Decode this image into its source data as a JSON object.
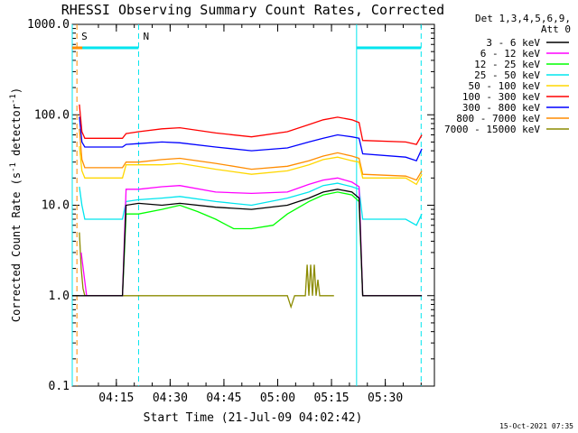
{
  "chart_data": {
    "type": "line",
    "title": "RHESSI Observing Summary Count Rates, Corrected",
    "xlabel": "Start Time (21-Jul-09 04:02:42)",
    "ylabel": "Corrected Count Rate (s",
    "ylabel_sup1": "-1",
    "ylabel_mid": " detector",
    "ylabel_sup2": "-1",
    "ylabel_end": ")",
    "y_scale": "log",
    "ylim": [
      0.1,
      1000
    ],
    "xlim_min": [
      0,
      101
    ],
    "x_ticks": [
      {
        "label": "04:15",
        "min": 12.3
      },
      {
        "label": "04:30",
        "min": 27.3
      },
      {
        "label": "04:45",
        "min": 42.3
      },
      {
        "label": "05:00",
        "min": 57.3
      },
      {
        "label": "05:15",
        "min": 72.3
      },
      {
        "label": "05:30",
        "min": 87.3
      }
    ],
    "y_ticks": [
      {
        "label": "1000.0",
        "v": 1000
      },
      {
        "label": "100.0",
        "v": 100
      },
      {
        "label": "10.0",
        "v": 10
      },
      {
        "label": "1.0",
        "v": 1
      },
      {
        "label": "0.1",
        "v": 0.1
      }
    ],
    "legend_title": [
      "Det 1,3,4,5,6,9,",
      "Att 0"
    ],
    "legend_placement": "right",
    "timestamp": "15-Oct-2021 07:35",
    "flags": [
      {
        "label": "S",
        "min": 1.3,
        "color": "#ff8c00"
      },
      {
        "label": "N",
        "min": 18.5,
        "color": "#00e5ee"
      }
    ],
    "saa_bars": [
      [
        0,
        18.5
      ],
      [
        79.3,
        97.3
      ]
    ],
    "saa_level": 550,
    "night_lines": [
      18.5,
      97.3
    ],
    "day_lines": [
      0,
      79.3
    ],
    "series": [
      {
        "name": "3 - 6 keV",
        "color": "#000000",
        "x": [
          0,
          4,
          14,
          15,
          18.5,
          25,
          30,
          40,
          50,
          60,
          66,
          70,
          74,
          78,
          80,
          81,
          93,
          96,
          97.5
        ],
        "y": [
          1,
          1,
          1,
          10,
          10.5,
          10,
          10.5,
          9.5,
          9,
          10,
          12,
          14,
          15,
          14,
          12,
          1,
          1,
          1,
          1
        ]
      },
      {
        "name": "6 - 12 keV",
        "color": "#ff00ff",
        "x": [
          2.5,
          4,
          14,
          15,
          18.5,
          25,
          30,
          40,
          50,
          60,
          66,
          70,
          74,
          78,
          80,
          81,
          93,
          96,
          97.5
        ],
        "y": [
          3,
          1,
          1,
          15,
          15,
          16,
          16.5,
          14,
          13.5,
          14,
          17,
          19,
          20,
          18,
          16,
          1,
          1,
          1,
          1
        ]
      },
      {
        "name": "12 - 25 keV",
        "color": "#00ff00",
        "x": [
          14,
          15,
          18.5,
          25,
          30,
          35,
          40,
          45,
          50,
          56,
          60,
          66,
          70,
          74,
          78,
          80,
          81
        ],
        "y": [
          1,
          8,
          8,
          9,
          10,
          8.5,
          7,
          5.5,
          5.5,
          6,
          8,
          11,
          13,
          14,
          13,
          11,
          1
        ]
      },
      {
        "name": "25 - 50 keV",
        "color": "#00e5ee",
        "x": [
          2,
          2.7,
          3.5,
          14,
          15,
          18.5,
          25,
          30,
          40,
          50,
          60,
          66,
          70,
          74,
          78,
          80,
          81,
          93,
          96,
          97.5
        ],
        "y": [
          16,
          10,
          7,
          7,
          11,
          11.5,
          12,
          12.5,
          11,
          10,
          12,
          14,
          16.5,
          17.5,
          16,
          15,
          7,
          7,
          6,
          8
        ]
      },
      {
        "name": "50 - 100 keV",
        "color": "#ffd700",
        "x": [
          2,
          2.7,
          3.5,
          14,
          15,
          18.5,
          25,
          30,
          40,
          50,
          60,
          66,
          70,
          74,
          78,
          80,
          81,
          93,
          96,
          97.5
        ],
        "y": [
          45,
          24,
          20,
          20,
          28,
          28,
          28,
          29,
          25,
          22,
          24,
          28,
          32,
          34,
          31,
          30,
          20,
          20,
          17,
          22
        ]
      },
      {
        "name": "100 - 300 keV",
        "color": "#ff0000",
        "x": [
          2,
          2.7,
          3.5,
          14,
          15,
          18.5,
          25,
          30,
          40,
          50,
          60,
          66,
          70,
          74,
          78,
          80,
          81,
          93,
          96,
          97.5
        ],
        "y": [
          130,
          65,
          55,
          55,
          62,
          65,
          70,
          72,
          63,
          57,
          65,
          78,
          88,
          94,
          88,
          82,
          52,
          50,
          47,
          60
        ]
      },
      {
        "name": "300 - 800 keV",
        "color": "#0000ff",
        "x": [
          2,
          2.7,
          3.5,
          14,
          15,
          18.5,
          25,
          30,
          40,
          50,
          60,
          66,
          70,
          74,
          78,
          80,
          81,
          93,
          96,
          97.5
        ],
        "y": [
          95,
          50,
          44,
          44,
          47,
          48,
          50,
          49,
          44,
          40,
          43,
          50,
          55,
          60,
          57,
          55,
          37,
          34,
          31,
          42
        ]
      },
      {
        "name": "800 - 7000 keV",
        "color": "#ff8c00",
        "x": [
          2,
          2.7,
          3.5,
          14,
          15,
          18.5,
          25,
          30,
          40,
          50,
          60,
          66,
          70,
          74,
          78,
          80,
          81,
          93,
          96,
          97.5
        ],
        "y": [
          70,
          32,
          26,
          26,
          30,
          30,
          32,
          33,
          29,
          25,
          27,
          31,
          35,
          38,
          35,
          33,
          22,
          21,
          19,
          24
        ]
      },
      {
        "name": "7000 - 15000 keV",
        "color": "#8b8b00",
        "x": [
          2,
          2.5,
          3,
          3.5,
          60,
          61,
          62,
          65,
          65.5,
          66,
          66.5,
          67,
          67.5,
          68,
          68.5,
          69,
          70,
          73
        ],
        "y": [
          5,
          2,
          1.2,
          1,
          1,
          0.75,
          1,
          1,
          2.2,
          1,
          2.2,
          1,
          2.2,
          1,
          1.5,
          1,
          1,
          1
        ]
      }
    ]
  }
}
